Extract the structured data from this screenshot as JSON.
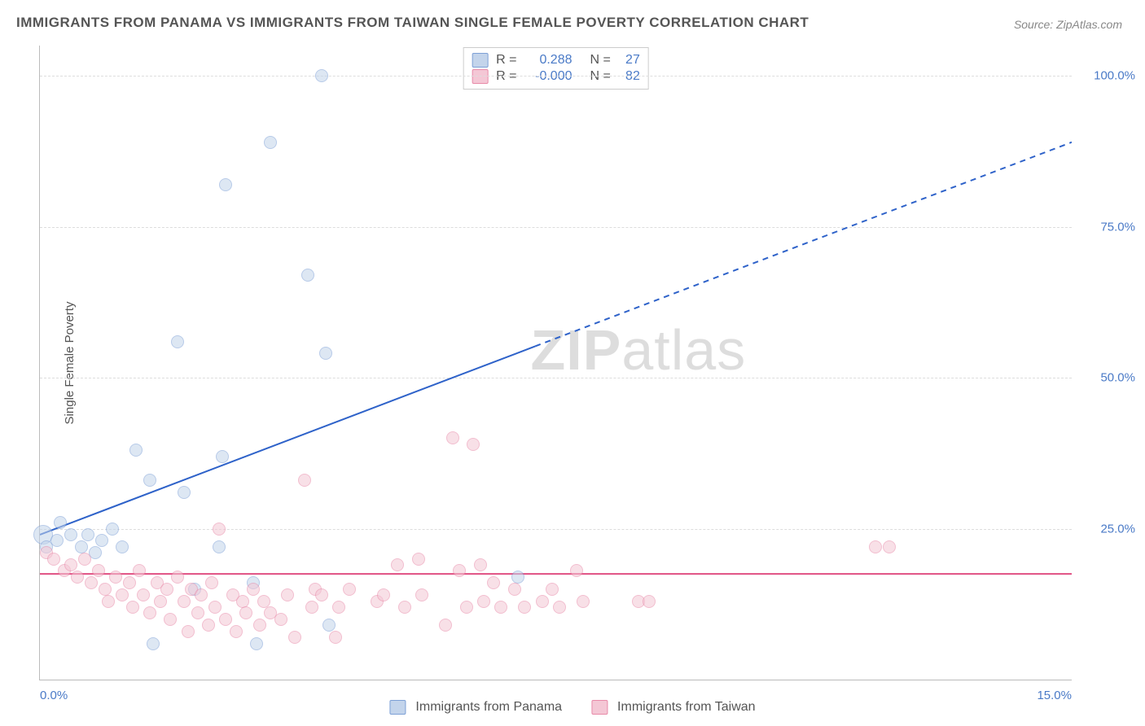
{
  "title": "IMMIGRANTS FROM PANAMA VS IMMIGRANTS FROM TAIWAN SINGLE FEMALE POVERTY CORRELATION CHART",
  "source": "Source: ZipAtlas.com",
  "ylabel": "Single Female Poverty",
  "watermark": {
    "bold": "ZIP",
    "thin": "atlas"
  },
  "chart": {
    "type": "scatter",
    "xlim": [
      0,
      15
    ],
    "ylim": [
      0,
      105
    ],
    "xtick_labels": [
      {
        "pos": 0,
        "label": "0.0%",
        "align": "left"
      },
      {
        "pos": 15,
        "label": "15.0%",
        "align": "right"
      }
    ],
    "ytick_labels": [
      {
        "pos": 25,
        "label": "25.0%"
      },
      {
        "pos": 50,
        "label": "50.0%"
      },
      {
        "pos": 75,
        "label": "75.0%"
      },
      {
        "pos": 100,
        "label": "100.0%"
      }
    ],
    "grid_color": "#dddddd",
    "background_color": "#ffffff",
    "marker_radius": 8,
    "series": [
      {
        "name": "Immigrants from Panama",
        "key": "panama",
        "fill": "#c3d4eb",
        "stroke": "#7da0d6",
        "fill_opacity": 0.55,
        "r_value": "0.288",
        "n_value": "27",
        "trend": {
          "x1": 0,
          "y1": 24,
          "x2": 15,
          "y2": 89,
          "solid_until_x": 7.2,
          "color": "#2e62c9",
          "width": 2
        },
        "points": [
          {
            "x": 0.05,
            "y": 24,
            "r": 12
          },
          {
            "x": 0.1,
            "y": 22
          },
          {
            "x": 0.25,
            "y": 23
          },
          {
            "x": 0.3,
            "y": 26
          },
          {
            "x": 0.45,
            "y": 24
          },
          {
            "x": 0.6,
            "y": 22
          },
          {
            "x": 0.7,
            "y": 24
          },
          {
            "x": 0.8,
            "y": 21
          },
          {
            "x": 0.9,
            "y": 23
          },
          {
            "x": 1.05,
            "y": 25
          },
          {
            "x": 1.2,
            "y": 22
          },
          {
            "x": 1.4,
            "y": 38
          },
          {
            "x": 1.6,
            "y": 33
          },
          {
            "x": 1.65,
            "y": 6
          },
          {
            "x": 2.0,
            "y": 56
          },
          {
            "x": 2.1,
            "y": 31
          },
          {
            "x": 2.25,
            "y": 15
          },
          {
            "x": 2.6,
            "y": 22
          },
          {
            "x": 2.65,
            "y": 37
          },
          {
            "x": 2.7,
            "y": 82
          },
          {
            "x": 3.1,
            "y": 16
          },
          {
            "x": 3.15,
            "y": 6
          },
          {
            "x": 3.35,
            "y": 89
          },
          {
            "x": 3.9,
            "y": 67
          },
          {
            "x": 4.1,
            "y": 100
          },
          {
            "x": 4.15,
            "y": 54
          },
          {
            "x": 4.2,
            "y": 9
          },
          {
            "x": 6.95,
            "y": 17
          }
        ]
      },
      {
        "name": "Immigrants from Taiwan",
        "key": "taiwan",
        "fill": "#f4c7d5",
        "stroke": "#e88aa8",
        "fill_opacity": 0.55,
        "r_value": "-0.000",
        "n_value": "82",
        "trend": {
          "x1": 0,
          "y1": 17.5,
          "x2": 15,
          "y2": 17.5,
          "solid_until_x": 15,
          "color": "#e04f82",
          "width": 2
        },
        "points": [
          {
            "x": 0.1,
            "y": 21
          },
          {
            "x": 0.2,
            "y": 20
          },
          {
            "x": 0.35,
            "y": 18
          },
          {
            "x": 0.45,
            "y": 19
          },
          {
            "x": 0.55,
            "y": 17
          },
          {
            "x": 0.65,
            "y": 20
          },
          {
            "x": 0.75,
            "y": 16
          },
          {
            "x": 0.85,
            "y": 18
          },
          {
            "x": 0.95,
            "y": 15
          },
          {
            "x": 1.0,
            "y": 13
          },
          {
            "x": 1.1,
            "y": 17
          },
          {
            "x": 1.2,
            "y": 14
          },
          {
            "x": 1.3,
            "y": 16
          },
          {
            "x": 1.35,
            "y": 12
          },
          {
            "x": 1.45,
            "y": 18
          },
          {
            "x": 1.5,
            "y": 14
          },
          {
            "x": 1.6,
            "y": 11
          },
          {
            "x": 1.7,
            "y": 16
          },
          {
            "x": 1.75,
            "y": 13
          },
          {
            "x": 1.85,
            "y": 15
          },
          {
            "x": 1.9,
            "y": 10
          },
          {
            "x": 2.0,
            "y": 17
          },
          {
            "x": 2.1,
            "y": 13
          },
          {
            "x": 2.15,
            "y": 8
          },
          {
            "x": 2.2,
            "y": 15
          },
          {
            "x": 2.3,
            "y": 11
          },
          {
            "x": 2.35,
            "y": 14
          },
          {
            "x": 2.45,
            "y": 9
          },
          {
            "x": 2.5,
            "y": 16
          },
          {
            "x": 2.55,
            "y": 12
          },
          {
            "x": 2.6,
            "y": 25
          },
          {
            "x": 2.7,
            "y": 10
          },
          {
            "x": 2.8,
            "y": 14
          },
          {
            "x": 2.85,
            "y": 8
          },
          {
            "x": 2.95,
            "y": 13
          },
          {
            "x": 3.0,
            "y": 11
          },
          {
            "x": 3.1,
            "y": 15
          },
          {
            "x": 3.2,
            "y": 9
          },
          {
            "x": 3.25,
            "y": 13
          },
          {
            "x": 3.35,
            "y": 11
          },
          {
            "x": 3.5,
            "y": 10
          },
          {
            "x": 3.6,
            "y": 14
          },
          {
            "x": 3.7,
            "y": 7
          },
          {
            "x": 3.85,
            "y": 33
          },
          {
            "x": 3.95,
            "y": 12
          },
          {
            "x": 4.0,
            "y": 15
          },
          {
            "x": 4.1,
            "y": 14
          },
          {
            "x": 4.3,
            "y": 7
          },
          {
            "x": 4.35,
            "y": 12
          },
          {
            "x": 4.5,
            "y": 15
          },
          {
            "x": 4.9,
            "y": 13
          },
          {
            "x": 5.0,
            "y": 14
          },
          {
            "x": 5.2,
            "y": 19
          },
          {
            "x": 5.3,
            "y": 12
          },
          {
            "x": 5.5,
            "y": 20
          },
          {
            "x": 5.55,
            "y": 14
          },
          {
            "x": 5.9,
            "y": 9
          },
          {
            "x": 6.0,
            "y": 40
          },
          {
            "x": 6.1,
            "y": 18
          },
          {
            "x": 6.2,
            "y": 12
          },
          {
            "x": 6.3,
            "y": 39
          },
          {
            "x": 6.4,
            "y": 19
          },
          {
            "x": 6.45,
            "y": 13
          },
          {
            "x": 6.6,
            "y": 16
          },
          {
            "x": 6.7,
            "y": 12
          },
          {
            "x": 6.9,
            "y": 15
          },
          {
            "x": 7.05,
            "y": 12
          },
          {
            "x": 7.3,
            "y": 13
          },
          {
            "x": 7.45,
            "y": 15
          },
          {
            "x": 7.55,
            "y": 12
          },
          {
            "x": 7.8,
            "y": 18
          },
          {
            "x": 7.9,
            "y": 13
          },
          {
            "x": 8.7,
            "y": 13
          },
          {
            "x": 8.85,
            "y": 13
          },
          {
            "x": 12.15,
            "y": 22
          },
          {
            "x": 12.35,
            "y": 22
          }
        ]
      }
    ]
  },
  "legend": {
    "r_label": "R =",
    "n_label": "N ="
  }
}
